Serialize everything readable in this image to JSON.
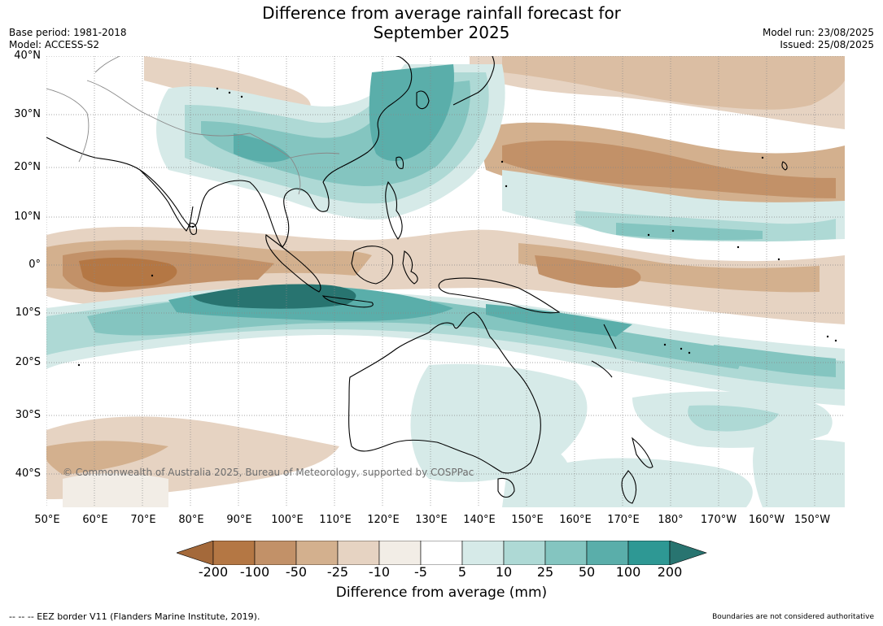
{
  "title_line1": "Difference from average rainfall forecast for",
  "title_line2": "September 2025",
  "base_period": "Base period: 1981-2018",
  "model": "Model: ACCESS-S2",
  "model_run": "Model run: 23/08/2025",
  "issued": "Issued: 25/08/2025",
  "lat_labels": [
    "40°N",
    "30°N",
    "20°N",
    "10°N",
    "0°",
    "10°S",
    "20°S",
    "30°S",
    "40°S"
  ],
  "lon_labels": [
    "50°E",
    "60°E",
    "70°E",
    "80°E",
    "90°E",
    "100°E",
    "110°E",
    "120°E",
    "130°E",
    "140°E",
    "150°E",
    "160°E",
    "170°E",
    "180°",
    "170°W",
    "160°W",
    "150°W"
  ],
  "copyright": "© Commonwealth of Australia 2025, Bureau of Meteorology, supported by COSPPac",
  "colorbar": {
    "ticks": [
      "-200",
      "-100",
      "-50",
      "-25",
      "-10",
      "-5",
      "5",
      "10",
      "25",
      "50",
      "100",
      "200"
    ],
    "colors": [
      "#a4693a",
      "#b47744",
      "#c29168",
      "#d3b08e",
      "#e6d3c2",
      "#f2ede6",
      "#ffffff",
      "#d6eae8",
      "#aed9d5",
      "#84c5c0",
      "#5aaeaa",
      "#2e9894",
      "#287470"
    ],
    "label": "Difference from average (mm)"
  },
  "footer_left": "--  --  -- EEZ border V11 (Flanders Marine Institute, 2019).",
  "footer_right": "Boundaries are not considered authoritative"
}
